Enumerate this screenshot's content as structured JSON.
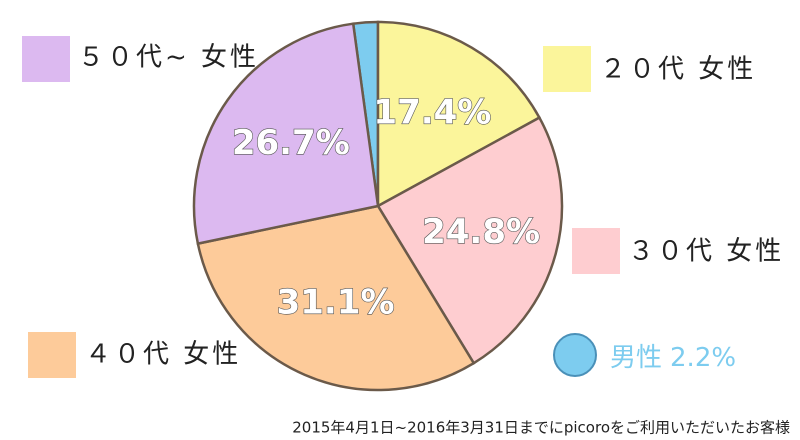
{
  "chart_data": {
    "type": "pie",
    "categories": [
      "男性",
      "２０代 女性",
      "３０代 女性",
      "４０代 女性",
      "５０代~ 女性"
    ],
    "values": [
      2.2,
      17.4,
      24.8,
      31.1,
      26.7
    ],
    "value_labels": [
      "2.2%",
      "17.4%",
      "24.8%",
      "31.1%",
      "26.7%"
    ],
    "colors": [
      "#7dccef",
      "#fbf59b",
      "#fecdd0",
      "#fdcb9a",
      "#dcb9f0"
    ],
    "footnote": "2015年4月1日~2016年3月31日までにpicoroをご利用いただいたお客様"
  }
}
